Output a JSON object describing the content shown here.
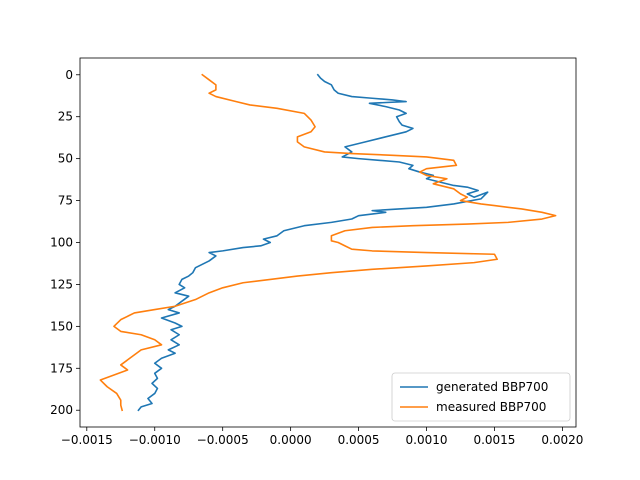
{
  "chart_data": {
    "type": "line",
    "title": "",
    "xlabel": "",
    "ylabel": "",
    "xlim": [
      -0.00155,
      0.0021
    ],
    "ylim": [
      210,
      -10
    ],
    "y_inverted": true,
    "grid": false,
    "legend_position": "lower-right",
    "xticks": [
      {
        "value": -0.0015,
        "label": "−0.0015"
      },
      {
        "value": -0.001,
        "label": "−0.0010"
      },
      {
        "value": -0.0005,
        "label": "−0.0005"
      },
      {
        "value": 0.0,
        "label": "0.0000"
      },
      {
        "value": 0.0005,
        "label": "0.0005"
      },
      {
        "value": 0.001,
        "label": "0.0010"
      },
      {
        "value": 0.0015,
        "label": "0.0015"
      },
      {
        "value": 0.002,
        "label": "0.0020"
      }
    ],
    "yticks": [
      {
        "value": 0,
        "label": "0"
      },
      {
        "value": 25,
        "label": "25"
      },
      {
        "value": 50,
        "label": "50"
      },
      {
        "value": 75,
        "label": "75"
      },
      {
        "value": 100,
        "label": "100"
      },
      {
        "value": 125,
        "label": "125"
      },
      {
        "value": 150,
        "label": "150"
      },
      {
        "value": 175,
        "label": "175"
      },
      {
        "value": 200,
        "label": "200"
      }
    ],
    "series": [
      {
        "name": "generated BBP700",
        "color": "#1f77b4",
        "points": [
          [
            0.0002,
            0
          ],
          [
            0.00022,
            2
          ],
          [
            0.00025,
            4
          ],
          [
            0.0003,
            6
          ],
          [
            0.00032,
            9
          ],
          [
            0.00035,
            11
          ],
          [
            0.00045,
            13
          ],
          [
            0.0006,
            14
          ],
          [
            0.00075,
            15
          ],
          [
            0.00085,
            16
          ],
          [
            0.00058,
            17
          ],
          [
            0.0007,
            19
          ],
          [
            0.0008,
            21
          ],
          [
            0.00085,
            23
          ],
          [
            0.00078,
            25
          ],
          [
            0.0008,
            28
          ],
          [
            0.00082,
            30
          ],
          [
            0.0009,
            32
          ],
          [
            0.00085,
            34
          ],
          [
            0.0007,
            37
          ],
          [
            0.00055,
            40
          ],
          [
            0.0004,
            43
          ],
          [
            0.00045,
            46
          ],
          [
            0.00038,
            49
          ],
          [
            0.0005,
            50
          ],
          [
            0.00065,
            51
          ],
          [
            0.0008,
            52
          ],
          [
            0.0009,
            54
          ],
          [
            0.00087,
            56
          ],
          [
            0.00095,
            58
          ],
          [
            0.00105,
            60
          ],
          [
            0.001,
            62
          ],
          [
            0.0011,
            64
          ],
          [
            0.0012,
            66
          ],
          [
            0.0013,
            67
          ],
          [
            0.00138,
            69
          ],
          [
            0.0013,
            71
          ],
          [
            0.00135,
            73
          ],
          [
            0.00145,
            70
          ],
          [
            0.0014,
            74
          ],
          [
            0.0012,
            77
          ],
          [
            0.001,
            79
          ],
          [
            0.0008,
            80
          ],
          [
            0.0006,
            81
          ],
          [
            0.0007,
            82
          ],
          [
            0.0005,
            84
          ],
          [
            0.00045,
            86
          ],
          [
            0.0003,
            88
          ],
          [
            0.0001,
            90
          ],
          [
            -5e-05,
            93
          ],
          [
            -0.0001,
            96
          ],
          [
            -0.0002,
            98
          ],
          [
            -0.00015,
            100
          ],
          [
            -0.00022,
            102
          ],
          [
            -0.00035,
            103
          ],
          [
            -0.0005,
            105
          ],
          [
            -0.0006,
            106
          ],
          [
            -0.00055,
            108
          ],
          [
            -0.0006,
            111
          ],
          [
            -0.00065,
            113
          ],
          [
            -0.0007,
            115
          ],
          [
            -0.00072,
            118
          ],
          [
            -0.00075,
            120
          ],
          [
            -0.0008,
            122
          ],
          [
            -0.00082,
            125
          ],
          [
            -0.00078,
            127
          ],
          [
            -0.00085,
            130
          ],
          [
            -0.00075,
            132
          ],
          [
            -0.0008,
            135
          ],
          [
            -0.00085,
            138
          ],
          [
            -0.0009,
            140
          ],
          [
            -0.00082,
            142
          ],
          [
            -0.00095,
            145
          ],
          [
            -0.00085,
            148
          ],
          [
            -0.0008,
            150
          ],
          [
            -0.00088,
            152
          ],
          [
            -0.00082,
            155
          ],
          [
            -0.00088,
            158
          ],
          [
            -0.00082,
            161
          ],
          [
            -0.0009,
            164
          ],
          [
            -0.00085,
            166
          ],
          [
            -0.00095,
            169
          ],
          [
            -0.001,
            172
          ],
          [
            -0.00095,
            175
          ],
          [
            -0.001,
            178
          ],
          [
            -0.00098,
            181
          ],
          [
            -0.00102,
            184
          ],
          [
            -0.00098,
            187
          ],
          [
            -0.001,
            190
          ],
          [
            -0.00105,
            193
          ],
          [
            -0.00102,
            196
          ],
          [
            -0.0011,
            198
          ],
          [
            -0.00112,
            200
          ]
        ]
      },
      {
        "name": "measured BBP700",
        "color": "#ff7f0e",
        "points": [
          [
            -0.00065,
            0
          ],
          [
            -0.0006,
            3
          ],
          [
            -0.00055,
            6
          ],
          [
            -0.00055,
            9
          ],
          [
            -0.0006,
            11
          ],
          [
            -0.00055,
            13
          ],
          [
            -0.0004,
            16
          ],
          [
            -0.0003,
            18
          ],
          [
            -0.0001,
            20
          ],
          [
            0.0001,
            23
          ],
          [
            0.00015,
            27
          ],
          [
            0.00018,
            31
          ],
          [
            0.00015,
            34
          ],
          [
            5e-05,
            37
          ],
          [
            5e-05,
            40
          ],
          [
            0.0001,
            43
          ],
          [
            0.00025,
            46
          ],
          [
            0.00045,
            47
          ],
          [
            0.00075,
            48
          ],
          [
            0.001,
            49
          ],
          [
            0.0012,
            51
          ],
          [
            0.00122,
            54
          ],
          [
            0.001,
            56
          ],
          [
            0.00095,
            58
          ],
          [
            0.001,
            60
          ],
          [
            0.00115,
            62
          ],
          [
            0.00105,
            65
          ],
          [
            0.0012,
            68
          ],
          [
            0.00125,
            71
          ],
          [
            0.0013,
            73
          ],
          [
            0.00125,
            75
          ],
          [
            0.0014,
            77
          ],
          [
            0.0015,
            78
          ],
          [
            0.0017,
            80
          ],
          [
            0.00185,
            82
          ],
          [
            0.00195,
            84
          ],
          [
            0.00185,
            86
          ],
          [
            0.0016,
            88
          ],
          [
            0.0013,
            89
          ],
          [
            0.0009,
            90
          ],
          [
            0.0006,
            91
          ],
          [
            0.0004,
            93
          ],
          [
            0.0003,
            96
          ],
          [
            0.0003,
            99
          ],
          [
            0.00035,
            100
          ],
          [
            0.0004,
            102
          ],
          [
            0.00045,
            104
          ],
          [
            0.0006,
            105
          ],
          [
            0.001,
            106
          ],
          [
            0.0015,
            107
          ],
          [
            0.00152,
            110
          ],
          [
            0.00135,
            112
          ],
          [
            0.001,
            114
          ],
          [
            0.0006,
            116
          ],
          [
            0.0003,
            118
          ],
          [
            5e-05,
            120
          ],
          [
            -0.00015,
            122
          ],
          [
            -0.00035,
            124
          ],
          [
            -0.0005,
            127
          ],
          [
            -0.0006,
            130
          ],
          [
            -0.0007,
            134
          ],
          [
            -0.00085,
            138
          ],
          [
            -0.001,
            140
          ],
          [
            -0.00115,
            142
          ],
          [
            -0.00125,
            146
          ],
          [
            -0.0013,
            150
          ],
          [
            -0.00125,
            153
          ],
          [
            -0.0011,
            155
          ],
          [
            -0.001,
            158
          ],
          [
            -0.00095,
            161
          ],
          [
            -0.0011,
            164
          ],
          [
            -0.00115,
            167
          ],
          [
            -0.0012,
            170
          ],
          [
            -0.00125,
            173
          ],
          [
            -0.0012,
            176
          ],
          [
            -0.0013,
            179
          ],
          [
            -0.0014,
            182
          ],
          [
            -0.00135,
            186
          ],
          [
            -0.00128,
            190
          ],
          [
            -0.00125,
            194
          ],
          [
            -0.00125,
            197
          ],
          [
            -0.00124,
            200
          ]
        ]
      }
    ]
  }
}
